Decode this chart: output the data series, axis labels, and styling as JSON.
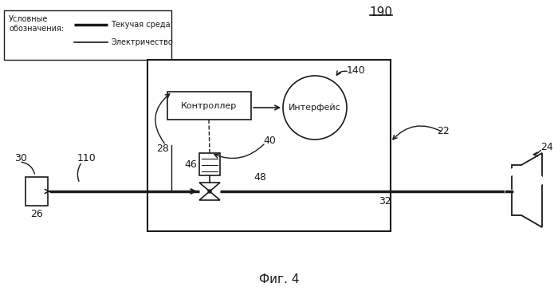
{
  "title": "Фиг. 4",
  "label_190": "190",
  "label_140": "140",
  "label_22": "22",
  "label_24": "24",
  "label_28": "28",
  "label_30": "30",
  "label_32": "32",
  "label_40": "40",
  "label_46": "46",
  "label_48": "48",
  "label_26": "26",
  "label_110": "110",
  "text_controller": "Контроллер",
  "text_interface": "Интерфейс",
  "legend_title": "Условные\nобозначения:",
  "legend_fluid": "Текучая среда",
  "legend_electric": "Электричество",
  "bg_color": "#ffffff",
  "line_color": "#1a1a1a"
}
